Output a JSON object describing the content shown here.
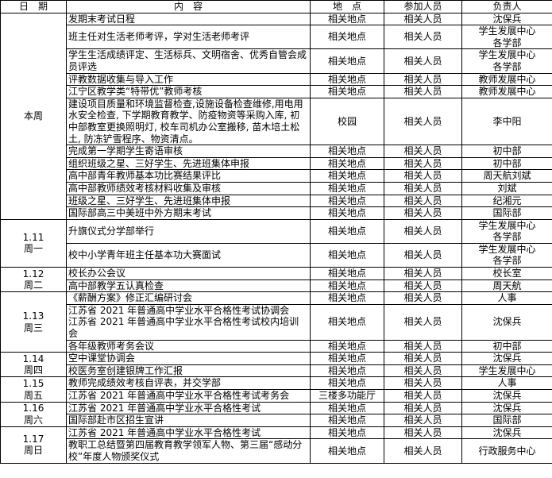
{
  "header": [
    "日　期",
    "内　容",
    "地　点",
    "参加人员",
    "负责人"
  ],
  "groups": [
    {
      "date": [
        "本周"
      ],
      "rows": [
        [
          "发期末考试日程",
          "相关地点",
          "相关人员",
          "沈保兵"
        ],
        [
          "班主任对生活老师考评，学对生活老师考评",
          "相关地点",
          "相关人员",
          [
            "学生发展中心",
            "各学部"
          ]
        ],
        [
          "学生生活成绩评定、生活标兵、文明宿舍、优秀自管会成员评选",
          "相关地点",
          "相关人员",
          [
            "学生发展中心",
            "各学部"
          ]
        ],
        [
          "评教数据收集与导入工作",
          "相关地点",
          "相关人员",
          "教师发展中心"
        ],
        [
          "江宁区教学类“特带优”教师考核",
          "相关地点",
          "相关人员",
          "教师发展中心"
        ],
        [
          "建设项目质量和环境监督检查,设施设备检查维修,用电用水安全检查, 下学期教育教学、防疫物资等采购入库, 初中部教室更换照明灯, 校车司机办公室搬移, 苗木培土松土, 防冻铲雪程序、物资清点。",
          "校园",
          "相关人员",
          "李中阳"
        ],
        [
          "完成第一学期学生寄语审核",
          "相关地点",
          "相关人员",
          "初中部"
        ],
        [
          "组织班级之星、三好学生、先进班集体申报",
          "相关地点",
          "相关人员",
          "初中部"
        ],
        [
          "高中部青年教师基本功比赛结果评比",
          "相关地点",
          "相关人员",
          "周天航刘斌"
        ],
        [
          "高中部教师绩效考核材料收集及审核",
          "相关地点",
          "相关人员",
          "刘斌"
        ],
        [
          "班级之星、三好学生、先进班集体申报",
          "相关地点",
          "相关人员",
          "纪湘元"
        ],
        [
          "国际部高三中美班中外方期末考试",
          "相关地点",
          "相关人员",
          "国际部"
        ]
      ]
    },
    {
      "date": [
        "1.11",
        "周一"
      ],
      "rows": [
        [
          "升旗仪式分学部举行",
          "相关地点",
          "相关人员",
          [
            "学生发展中心",
            "各学部"
          ]
        ],
        [
          "校中小学青年班主任基本功大赛面试",
          "相关地点",
          "相关人员",
          [
            "学生发展中心",
            "各学部"
          ]
        ]
      ]
    },
    {
      "date": [
        "1.12",
        "周二"
      ],
      "rows": [
        [
          "校长办公会议",
          "相关地点",
          "相关人员",
          "校长室"
        ],
        [
          "高中部教学五认真检查",
          "相关地点",
          "相关人员",
          "周天航"
        ]
      ]
    },
    {
      "date": [
        "1.13",
        "周三"
      ],
      "rows": [
        [
          "《薪酬方案》修正汇编研讨会",
          "相关地点",
          "相关人员",
          "人事"
        ],
        [
          [
            "江苏省 2021 年普通高中学业水平合格性考试协调会",
            "江苏省 2021 年普通高中学业水平合格性考试校内培训会"
          ],
          "相关地点",
          "相关人员",
          "沈保兵"
        ],
        [
          "各年级教师考务会议",
          "相关地点",
          "相关人员",
          "初中部"
        ]
      ]
    },
    {
      "date": [
        "1.14",
        "周四"
      ],
      "rows": [
        [
          "空中课堂协调会",
          "相关地点",
          "相关人员",
          "沈保兵"
        ],
        [
          "校医务室创建银牌工作汇报",
          "相关地点",
          "相关人员",
          "学生发展中心"
        ]
      ]
    },
    {
      "date": [
        "1.15",
        "周五"
      ],
      "rows": [
        [
          "教师完成绩效考核自评表，并交学部",
          "相关地点",
          "相关人员",
          "人事"
        ],
        [
          "江苏省 2021 年普通高中学业水平合格性考试考务会",
          "三楼多功能厅",
          "相关人员",
          "沈保兵"
        ]
      ]
    },
    {
      "date": [
        "1.16",
        "周六"
      ],
      "rows": [
        [
          "江苏省 2021 年普通高中学业水平合格性考试",
          "相关地点",
          "相关人员",
          "沈保兵"
        ],
        [
          "国际部赴市区招生宣讲",
          "相关地点",
          "相关人员",
          "国际部"
        ]
      ]
    },
    {
      "date": [
        "1.17",
        "周日"
      ],
      "rows": [
        [
          "江苏省 2021 年普通高中学业水平合格性考试",
          "相关地点",
          "相关人员",
          "沈保兵"
        ],
        [
          "教职工总结暨第四届教育教学领军人物、第三届“感动分校”年度人物颁奖仪式",
          "相关地点",
          "相关人员",
          "行政服务中心"
        ]
      ]
    }
  ]
}
